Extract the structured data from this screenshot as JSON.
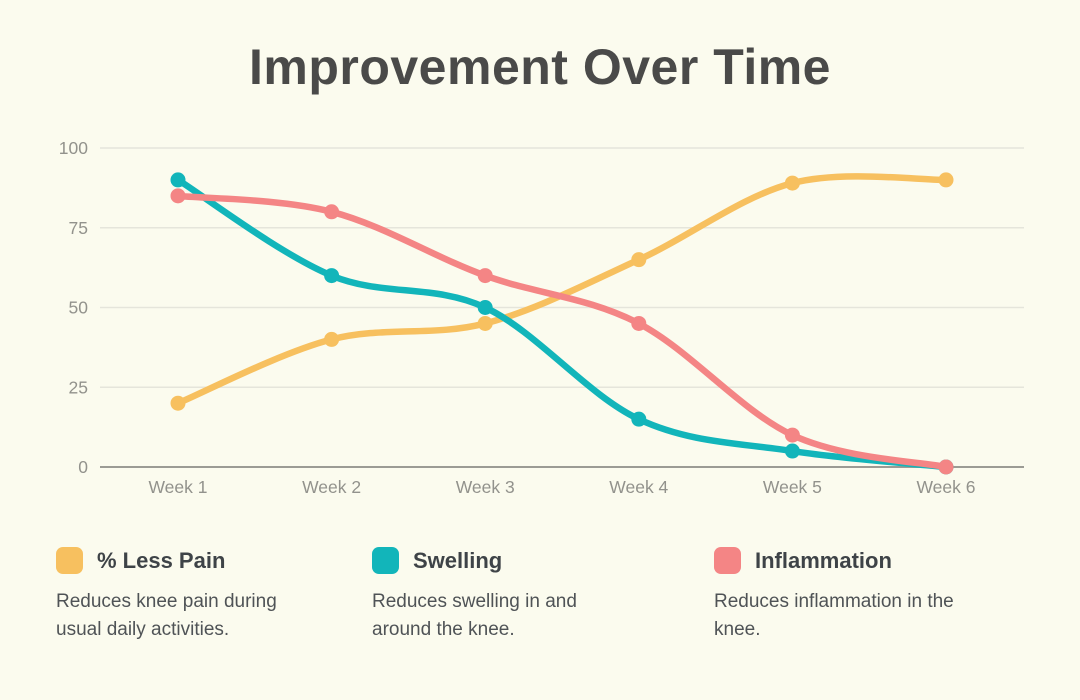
{
  "title": "Improvement Over Time",
  "colors": {
    "background": "#FBFBEE",
    "title_text": "#4A4A49",
    "axis_text": "#92928C",
    "gridline": "#E5E5DB",
    "axis_line": "#9B9B94"
  },
  "chart_data": {
    "type": "line",
    "title": "Improvement Over Time",
    "x_categories": [
      "Week 1",
      "Week 2",
      "Week 3",
      "Week 4",
      "Week 5",
      "Week 6"
    ],
    "y_ticks": [
      100,
      75,
      50,
      25,
      0
    ],
    "ylim": [
      0,
      100
    ],
    "grid": "horizontal",
    "legend_position": "bottom",
    "line_style": "smooth-with-point-markers",
    "series": [
      {
        "name": "% Less Pain",
        "color": "#F7C05F",
        "values": [
          20,
          40,
          45,
          65,
          89,
          90
        ],
        "description": "Reduces knee pain during usual daily activities."
      },
      {
        "name": "Swelling",
        "color": "#12B5BA",
        "values": [
          90,
          60,
          50,
          15,
          5,
          0
        ],
        "description": "Reduces swelling in and around the knee."
      },
      {
        "name": "Inflammation",
        "color": "#F48585",
        "values": [
          85,
          80,
          60,
          45,
          10,
          0
        ],
        "description": "Reduces inflammation in the knee."
      }
    ]
  },
  "legend": {
    "items": [
      {
        "label": "% Less Pain",
        "description": "Reduces knee pain during usual daily activities."
      },
      {
        "label": "Swelling",
        "description": "Reduces swelling in and around the knee."
      },
      {
        "label": "Inflammation",
        "description": "Reduces inflammation in the knee."
      }
    ]
  }
}
